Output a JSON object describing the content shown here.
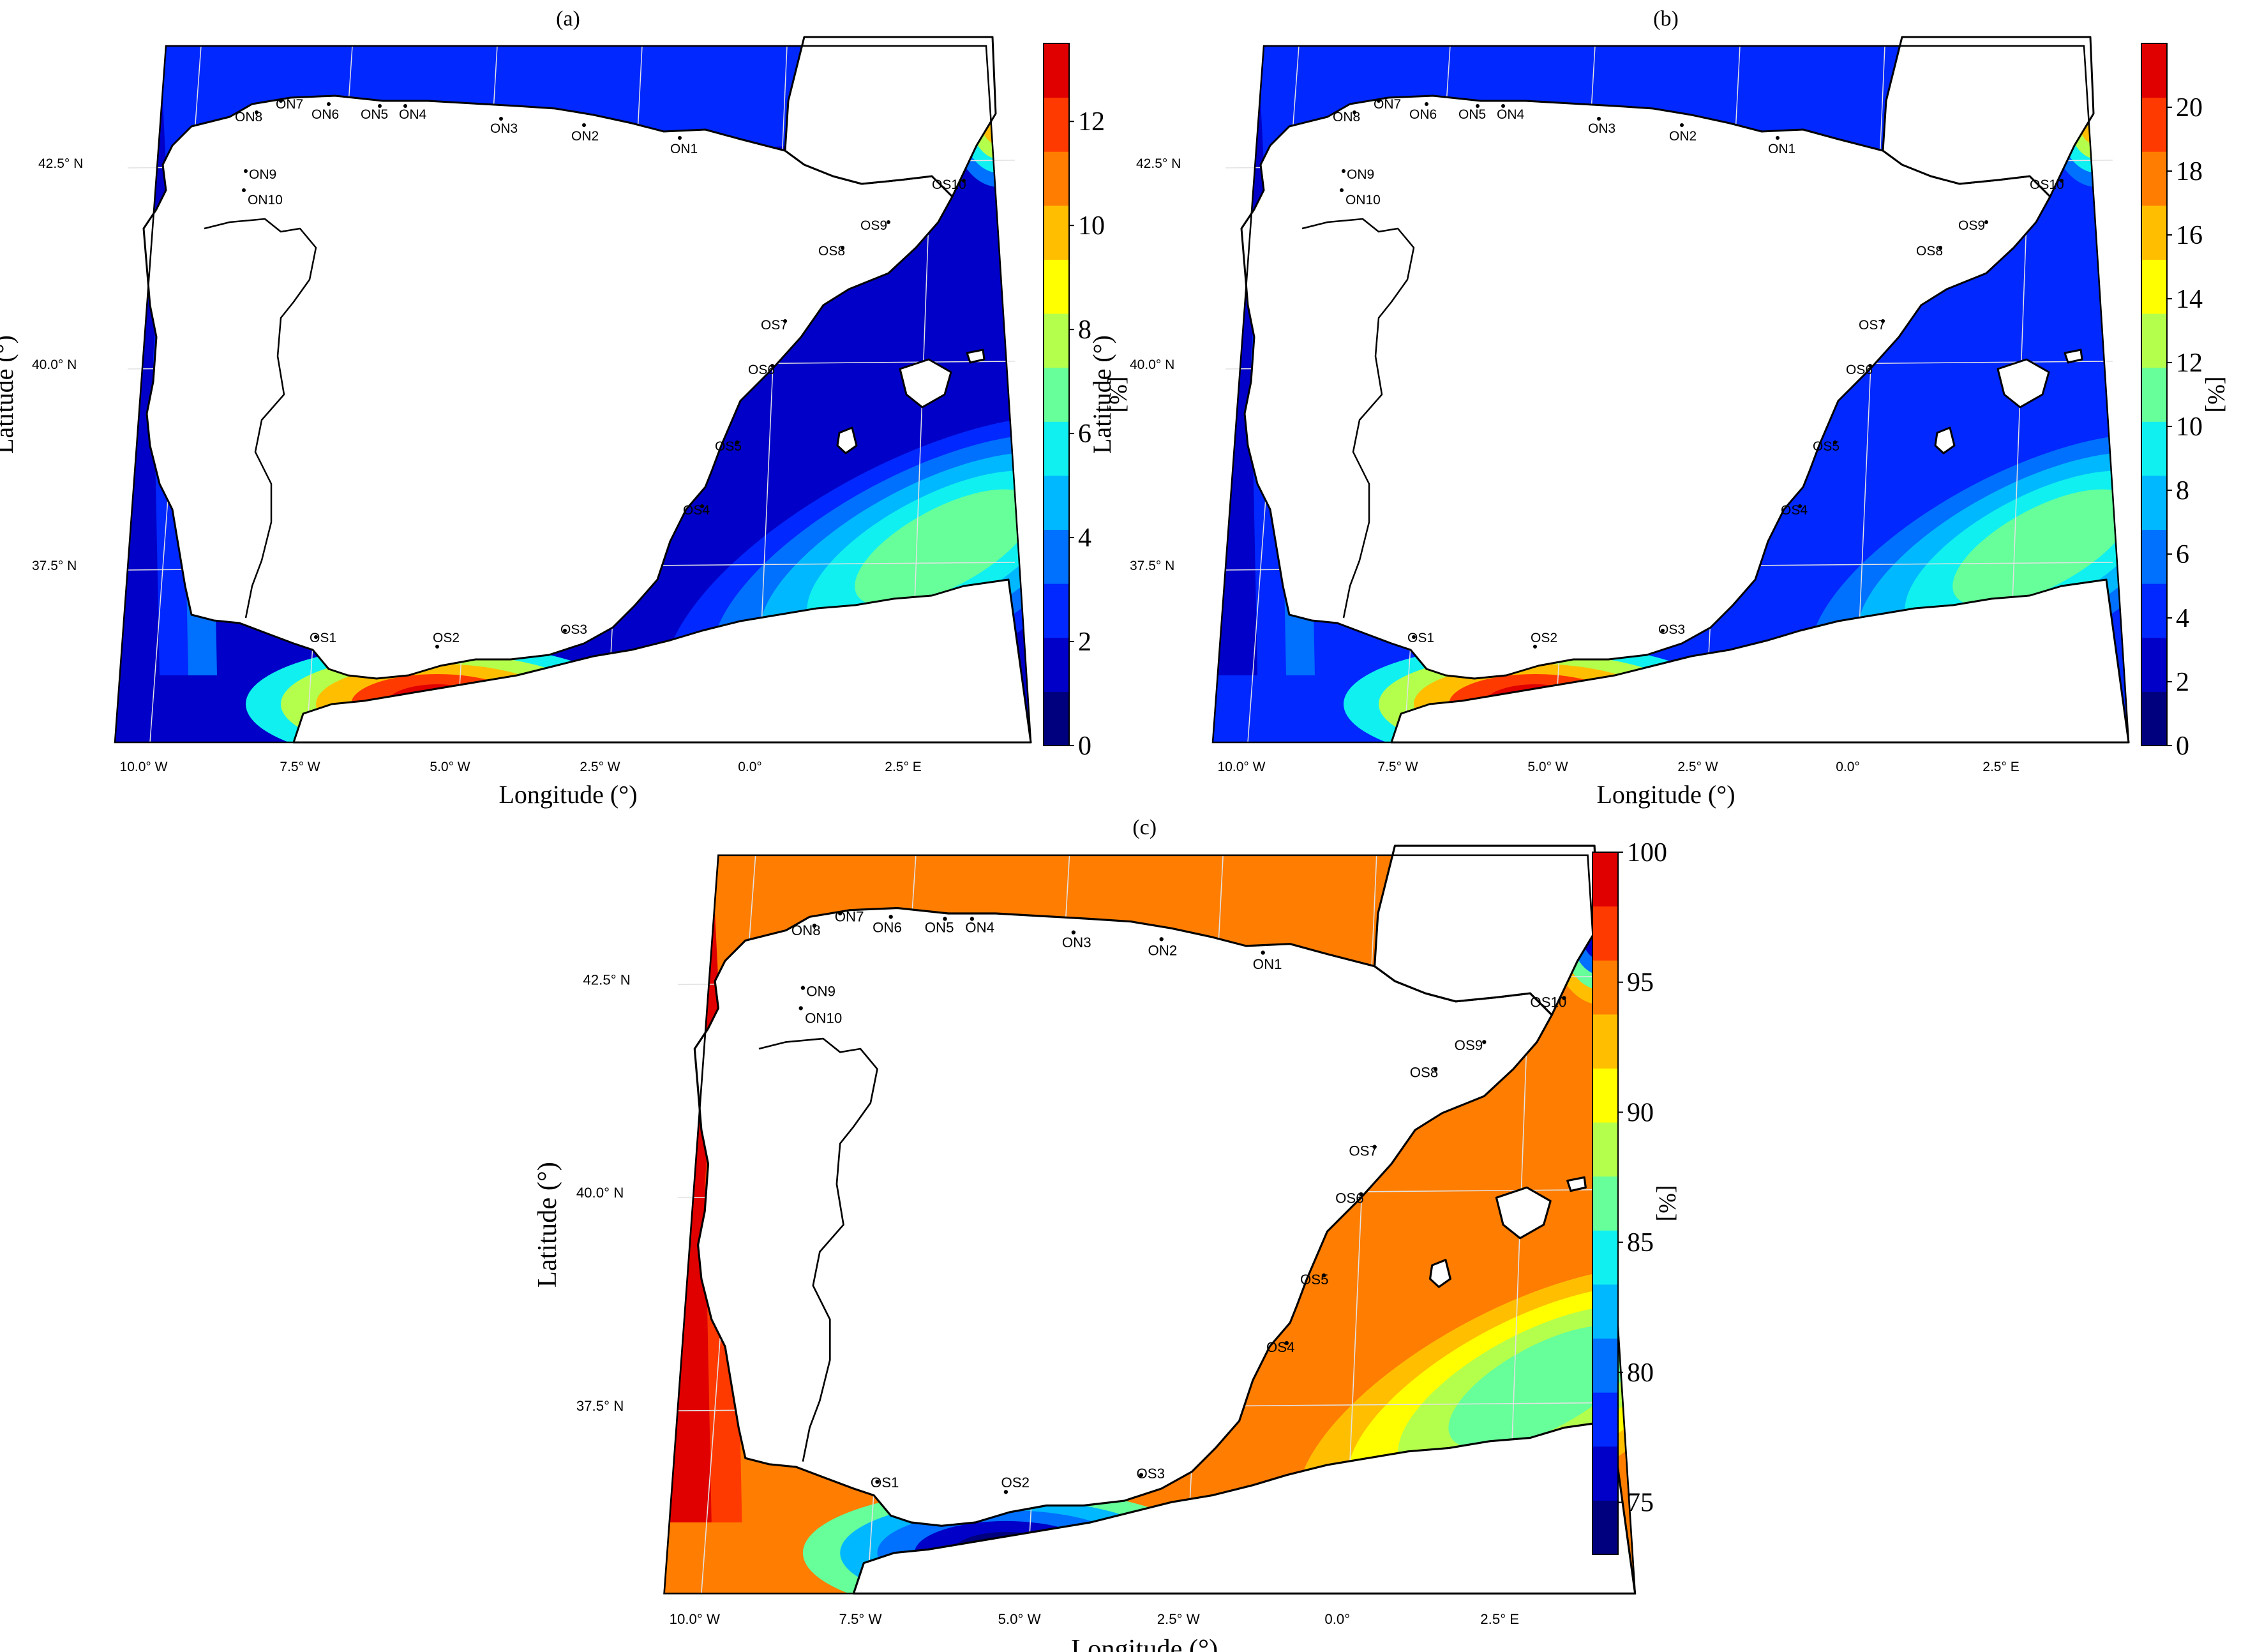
{
  "panels": [
    {
      "label": "(a)",
      "xlabel": "Longitude (°)",
      "ylabel": "Latitude (°)",
      "colorbar": {
        "unit": "[%]",
        "ticks": [
          "0",
          "2",
          "4",
          "6",
          "8",
          "10",
          "12"
        ],
        "range": [
          0,
          13.5
        ],
        "colors": [
          "#00007f",
          "#0000c8",
          "#0028ff",
          "#0070ff",
          "#00b8ff",
          "#10f0f0",
          "#66ff9a",
          "#b4ff4c",
          "#ffff00",
          "#ffbf00",
          "#ff7d00",
          "#ff3a00",
          "#e00000"
        ]
      },
      "field": {
        "background_level": 1,
        "north_coast_levels": [
          7,
          5,
          3,
          2
        ],
        "west_coast_levels": [
          3,
          2,
          1
        ],
        "alboran_core_levels": [
          5,
          7,
          9,
          11,
          12
        ],
        "balearic_levels": [
          2,
          3,
          4,
          5,
          6
        ],
        "gulf_of_lion_levels": [
          3,
          5,
          7,
          9
        ]
      }
    },
    {
      "label": "(b)",
      "xlabel": "Longitude (°)",
      "ylabel": "Latitude (°)",
      "colorbar": {
        "unit": "[%]",
        "ticks": [
          "0",
          "2",
          "4",
          "6",
          "8",
          "10",
          "12",
          "14",
          "16",
          "18",
          "20"
        ],
        "range": [
          0,
          22
        ],
        "colors": [
          "#00007f",
          "#0000c8",
          "#0028ff",
          "#0070ff",
          "#00b8ff",
          "#10f0f0",
          "#66ff9a",
          "#b4ff4c",
          "#ffff00",
          "#ffbf00",
          "#ff7d00",
          "#ff3a00",
          "#e00000"
        ]
      },
      "field": {
        "background_level": 2,
        "north_coast_levels": [
          7,
          5,
          3,
          2
        ],
        "west_coast_levels": [
          3,
          2,
          1
        ],
        "alboran_core_levels": [
          5,
          7,
          9,
          11,
          12
        ],
        "balearic_levels": [
          2,
          3,
          4,
          5,
          6
        ],
        "gulf_of_lion_levels": [
          3,
          5,
          7,
          9
        ]
      }
    },
    {
      "label": "(c)",
      "xlabel": "Longitude (°)",
      "ylabel": "Latitude (°)",
      "colorbar": {
        "unit": "[%]",
        "ticks": [
          "75",
          "80",
          "85",
          "90",
          "95",
          "100"
        ],
        "range": [
          73,
          100
        ],
        "colors": [
          "#00007f",
          "#0000c8",
          "#0028ff",
          "#0070ff",
          "#00b8ff",
          "#10f0f0",
          "#66ff9a",
          "#b4ff4c",
          "#ffff00",
          "#ffbf00",
          "#ff7d00",
          "#ff3a00",
          "#e00000"
        ]
      },
      "field": {
        "background_level": 10,
        "north_coast_levels": [
          6,
          8,
          9,
          10
        ],
        "west_coast_levels": [
          10,
          11,
          12
        ],
        "alboran_core_levels": [
          6,
          4,
          3,
          1,
          0
        ],
        "balearic_levels": [
          10,
          9,
          8,
          7,
          6
        ],
        "gulf_of_lion_levels": [
          9,
          6,
          3,
          1
        ]
      }
    }
  ],
  "lon_ticks": [
    "10.0° W",
    "7.5° W",
    "5.0° W",
    "2.5° W",
    "0.0°",
    "2.5° E"
  ],
  "lat_ticks": [
    "37.5° N",
    "40.0° N",
    "42.5° N"
  ],
  "sites": [
    "ON1",
    "ON2",
    "ON3",
    "ON4",
    "ON5",
    "ON6",
    "ON7",
    "ON8",
    "ON9",
    "ON10",
    "OS1",
    "OS2",
    "OS3",
    "OS4",
    "OS5",
    "OS6",
    "OS7",
    "OS8",
    "OS9",
    "OS10"
  ]
}
